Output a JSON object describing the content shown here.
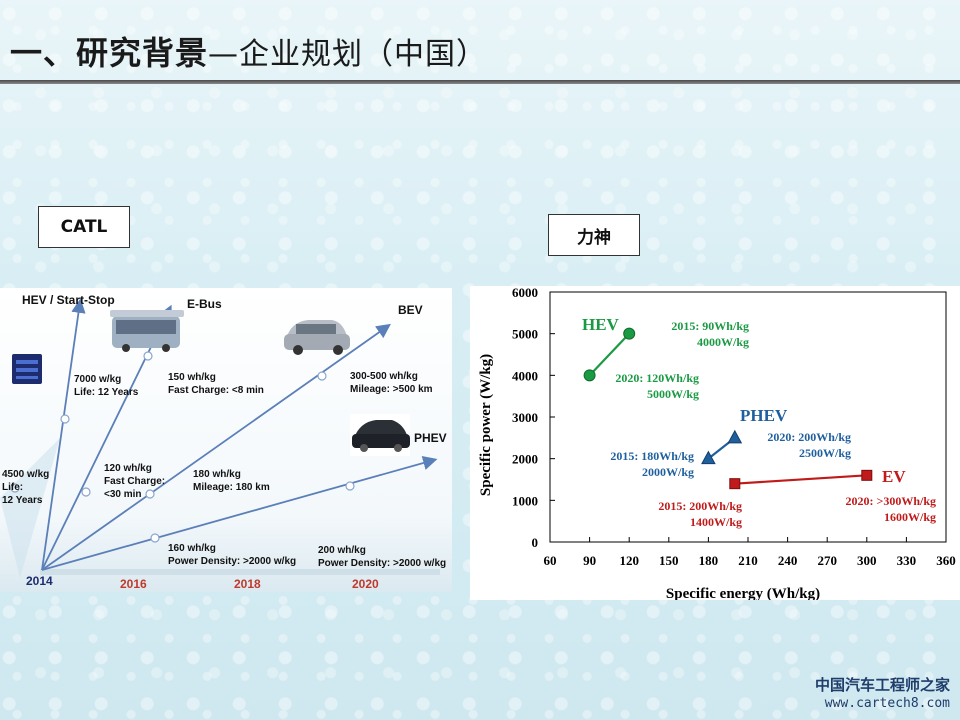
{
  "slide": {
    "title_main": "一、研究背景",
    "title_sub": "—企业规划（中国）"
  },
  "labels": {
    "catl": "CATL",
    "lishen": "力神"
  },
  "watermark": {
    "cn": "中国汽车工程师之家",
    "url": "www.cartech8.com"
  },
  "colors": {
    "hev": "#1a9a43",
    "phev": "#1f5f9e",
    "ev": "#c01a1a",
    "catl_line": "#5b7fb8",
    "year_text": "#c0392b"
  },
  "catl_chart": {
    "years": [
      "2014",
      "2016",
      "2018",
      "2020"
    ],
    "categories": [
      {
        "name": "HEV / Start-Stop"
      },
      {
        "name": "E-Bus"
      },
      {
        "name": "BEV"
      },
      {
        "name": "PHEV"
      }
    ],
    "annotations": [
      {
        "lines": [
          "4500 w/kg",
          "Life:",
          "12 Years"
        ]
      },
      {
        "lines": [
          "7000 w/kg",
          "Life: 12 Years"
        ]
      },
      {
        "lines": [
          "120 wh/kg",
          "Fast Charge:",
          "<30 min"
        ]
      },
      {
        "lines": [
          "150 wh/kg",
          "Fast Charge: <8 min"
        ]
      },
      {
        "lines": [
          "180 wh/kg",
          "Mileage: 180 km"
        ]
      },
      {
        "lines": [
          "300-500 wh/kg",
          "Mileage: >500 km"
        ]
      },
      {
        "lines": [
          "160 wh/kg",
          "Power Density: >2000 w/kg"
        ]
      },
      {
        "lines": [
          "200 wh/kg",
          "Power Density: >2000 w/kg"
        ]
      }
    ]
  },
  "chart_data": {
    "type": "scatter",
    "xlabel": "Specific energy (Wh/kg)",
    "ylabel": "Specific power (W/kg)",
    "xlim": [
      60,
      360
    ],
    "ylim": [
      0,
      6000
    ],
    "xticks": [
      60,
      90,
      120,
      150,
      180,
      210,
      240,
      270,
      300,
      330,
      360
    ],
    "yticks": [
      0,
      1000,
      2000,
      3000,
      4000,
      5000,
      6000
    ],
    "grid": false,
    "series": [
      {
        "name": "HEV",
        "color": "#1a9a43",
        "marker": "circle",
        "points": [
          {
            "x": 90,
            "y": 4000
          },
          {
            "x": 120,
            "y": 5000
          }
        ],
        "labels": [
          [
            "2015: 90Wh/kg",
            "4000W/kg"
          ],
          [
            "2020: 120Wh/kg",
            "5000W/kg"
          ]
        ]
      },
      {
        "name": "PHEV",
        "color": "#1f5f9e",
        "marker": "triangle",
        "points": [
          {
            "x": 180,
            "y": 2000
          },
          {
            "x": 200,
            "y": 2500
          }
        ],
        "labels": [
          [
            "2015: 180Wh/kg",
            "2000W/kg"
          ],
          [
            "2020: 200Wh/kg",
            "2500W/kg"
          ]
        ]
      },
      {
        "name": "EV",
        "color": "#c01a1a",
        "marker": "square",
        "points": [
          {
            "x": 200,
            "y": 1400
          },
          {
            "x": 300,
            "y": 1600
          }
        ],
        "labels": [
          [
            "2015: 200Wh/kg",
            "1400W/kg"
          ],
          [
            "2020: >300Wh/kg",
            "1600W/kg"
          ]
        ]
      }
    ]
  }
}
